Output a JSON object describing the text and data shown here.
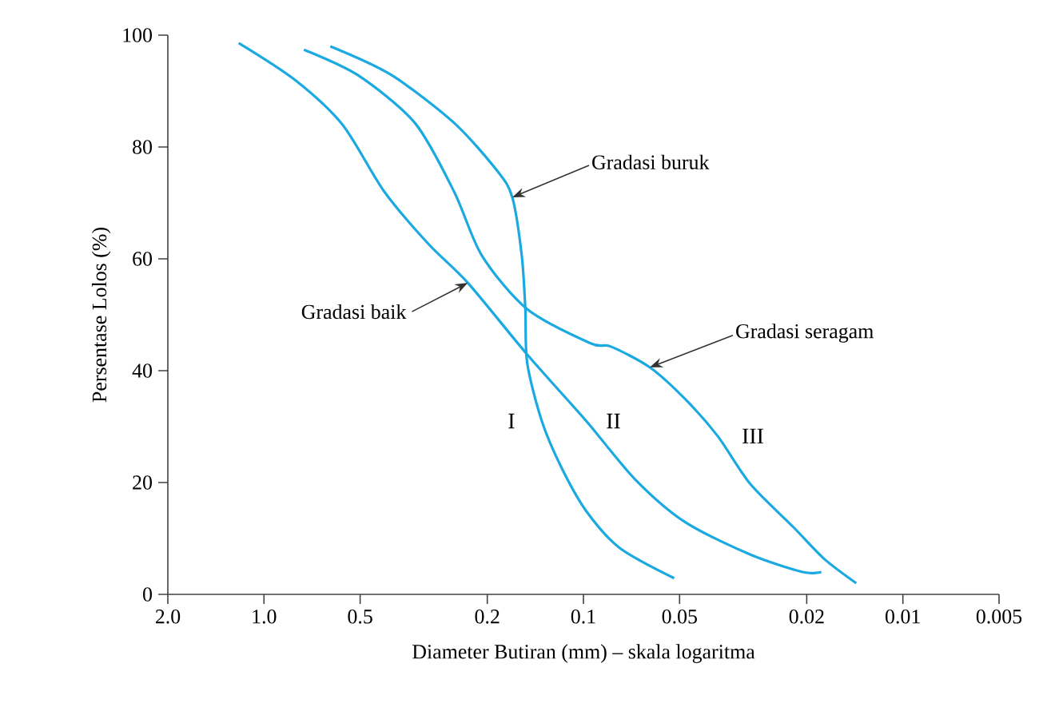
{
  "chart_data": {
    "type": "line",
    "xlabel": "Diameter Butiran (mm) – skala logaritma",
    "ylabel": "Persentase Lolos (%)",
    "log": "x",
    "xlim": [
      2,
      0.005
    ],
    "ylim": [
      0,
      100
    ],
    "xticks": [
      {
        "value": 2,
        "label": "2.0"
      },
      {
        "value": 1,
        "label": "1.0"
      },
      0.5,
      0.2,
      0.1,
      0.05,
      0.02,
      0.01,
      0.005
    ],
    "yticks": [
      0,
      20,
      40,
      60,
      80,
      100
    ],
    "grid": false,
    "marker": "none",
    "line_style": "solid",
    "series": [
      {
        "name": "I",
        "color": "#1ba9e1",
        "x": [
          0.62,
          0.4,
          0.254,
          0.186,
          0.167,
          0.156,
          0.152,
          0.15,
          0.135,
          0.117,
          0.098,
          0.077,
          0.052
        ],
        "values": [
          98,
          92.9,
          84.3,
          75.7,
          71,
          60.6,
          51,
          41.4,
          31,
          22.6,
          14.9,
          8.3,
          2.9
        ]
      },
      {
        "name": "II",
        "color": "#1ba9e1",
        "x": [
          1.2,
          0.8,
          0.568,
          0.42,
          0.305,
          0.23,
          0.15,
          0.098,
          0.069,
          0.048,
          0.03,
          0.0206,
          0.018
        ],
        "values": [
          98.6,
          92,
          84,
          72,
          62.6,
          55.7,
          42.9,
          31,
          20.6,
          12.9,
          7.1,
          4,
          4
        ]
      },
      {
        "name": "III",
        "color": "#1ba9e1",
        "x": [
          0.75,
          0.51,
          0.337,
          0.254,
          0.208,
          0.15,
          0.095,
          0.082,
          0.062,
          0.048,
          0.038,
          0.03,
          0.022,
          0.0176,
          0.014
        ],
        "values": [
          97.4,
          92.9,
          84.3,
          72,
          60.6,
          51,
          44.9,
          44.3,
          40.6,
          34.9,
          28.3,
          19.7,
          12,
          6.3,
          2
        ]
      }
    ],
    "annotations": [
      {
        "text": "Gradasi buruk",
        "x": 0.167,
        "y": 71
      },
      {
        "text": "Gradasi baik",
        "x": 0.23,
        "y": 55.7
      },
      {
        "text": "Gradasi seragam",
        "x": 0.062,
        "y": 40.6
      }
    ]
  }
}
